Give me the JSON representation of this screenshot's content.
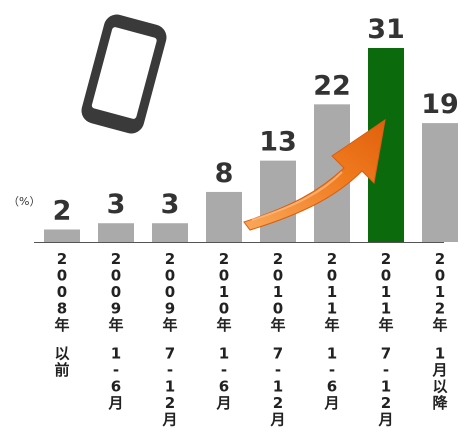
{
  "chart_data": {
    "type": "bar",
    "unit_label": "（%）",
    "categories": [
      [
        "2008年",
        "以前"
      ],
      [
        "2009年",
        "1-6月"
      ],
      [
        "2009年",
        "7-12月"
      ],
      [
        "2010年",
        "1-6月"
      ],
      [
        "2010年",
        "7-12月"
      ],
      [
        "2011年",
        "1-6月"
      ],
      [
        "2011年",
        "7-12月"
      ],
      [
        "2012年",
        "1月以降"
      ]
    ],
    "values": [
      2,
      3,
      3,
      8,
      13,
      22,
      31,
      19
    ],
    "data_labels": [
      "2",
      "3",
      "3",
      "8",
      "13",
      "22",
      "31",
      "19"
    ],
    "ylim": [
      0,
      31
    ],
    "grid": false,
    "highlight_index": 6,
    "colors": {
      "bar": "#aaaaaa",
      "highlight": "#0b6a0b",
      "arrow": "#f07a1e",
      "axis": "#555555",
      "phone": "#3a3a3a"
    },
    "icons": [
      "smartphone-icon",
      "trend-arrow-icon"
    ]
  }
}
